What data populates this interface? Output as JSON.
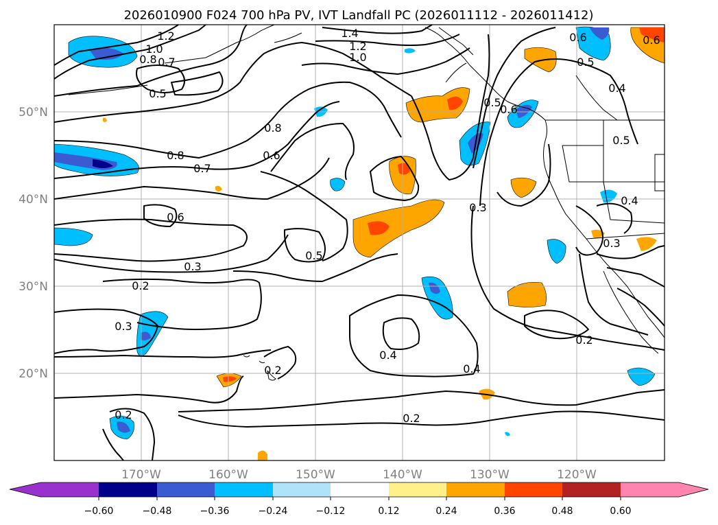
{
  "title": "2026010900 F024 700 hPa PV, IVT Landfall PC (2026011112 - 2026011412)",
  "lat_labels": [
    "50°N",
    "40°N",
    "30°N",
    "20°N"
  ],
  "lon_labels": [
    "170°W",
    "160°W",
    "150°W",
    "140°W",
    "130°W",
    "120°W"
  ],
  "colorbar": {
    "ticks": [
      "−0.60",
      "−0.48",
      "−0.36",
      "−0.24",
      "−0.12",
      "0.12",
      "0.24",
      "0.36",
      "0.48",
      "0.60"
    ],
    "colors": {
      "under": "#9932cc",
      "c0": "#00008b",
      "c1": "#3a5bd1",
      "c2": "#00bfff",
      "c3": "#aee3fb",
      "c4": "#ffffff",
      "c5": "#fff08a",
      "c6": "#ffa500",
      "c7": "#ff4500",
      "c8": "#b22222",
      "over": "#ff85b0"
    }
  },
  "contour_labels": {
    "c1": "1.2",
    "c2": "1.0",
    "c3": "0.8",
    "c4": "0.7",
    "c5": "0.5",
    "c6": "1.4",
    "c7": "1.2",
    "c8": "1.0",
    "c9": "0.8",
    "c10": "0.6",
    "c11": "0.8",
    "c12": "0.7",
    "c13": "0.6",
    "c14": "0.3",
    "c15": "0.5",
    "c16": "0.2",
    "c17": "0.3",
    "c18": "0.2",
    "c19": "0.4",
    "c20": "0.4",
    "c21": "0.2",
    "c22": "0.2",
    "c23": "0.3",
    "c24": "0.5",
    "c25": "0.6",
    "c26": "0.5",
    "c27": "0.4",
    "c28": "0.5",
    "c29": "0.4",
    "c30": "0.3",
    "c31": "0.2",
    "c32": "0.6",
    "c33": "0.6"
  }
}
